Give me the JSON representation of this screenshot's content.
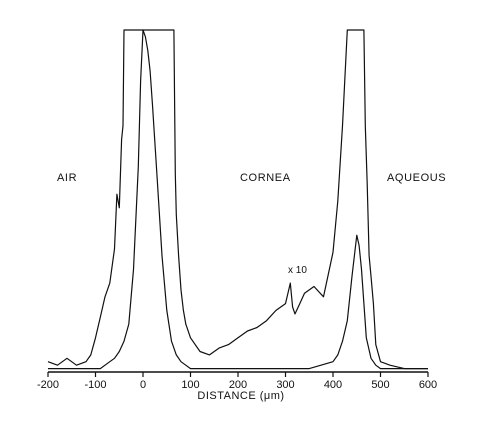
{
  "chart_data": {
    "type": "line",
    "title": "",
    "xlabel": "DISTANCE (μm)",
    "ylabel": "",
    "xlim": [
      -200,
      600
    ],
    "ylim": [
      0,
      100
    ],
    "x_ticks": [
      "-200",
      "-100",
      "0",
      "100",
      "200",
      "300",
      "400",
      "500",
      "600"
    ],
    "grid": false,
    "legend": "none",
    "region_labels": [
      "AIR",
      "CORNEA",
      "AQUEOUS"
    ],
    "annotation": "x 10",
    "colors": {
      "line": "#111111",
      "background": "#ffffff"
    },
    "series": [
      {
        "x": [
          -200,
          -170,
          -150,
          -140,
          -130,
          -120,
          -110,
          -100,
          -90,
          -80,
          -70,
          -60,
          -50,
          -40,
          -30,
          -20,
          -10,
          -5,
          0,
          5,
          10,
          15,
          20,
          30,
          40,
          50,
          60,
          70,
          80,
          90,
          100,
          150,
          200,
          250,
          300,
          350,
          400,
          410,
          420,
          430,
          440,
          450,
          455,
          460,
          465,
          470,
          480,
          490,
          500,
          550,
          600
        ],
        "y": [
          1,
          1,
          1,
          1,
          1,
          1,
          1,
          1,
          1,
          2,
          3,
          4,
          6,
          9,
          14,
          30,
          60,
          85,
          100,
          98,
          94,
          88,
          78,
          56,
          34,
          18,
          9,
          5,
          3,
          2,
          1,
          1,
          1,
          1,
          1,
          1,
          3,
          5,
          9,
          15,
          28,
          40,
          37,
          30,
          20,
          10,
          4,
          2,
          1,
          1,
          1
        ]
      },
      {
        "x": [
          -200,
          -180,
          -160,
          -140,
          -120,
          -110,
          -100,
          -90,
          -80,
          -70,
          -60,
          -55,
          -50,
          -45,
          -42,
          -40,
          -35,
          -30,
          -25,
          0,
          60,
          65,
          68,
          70,
          75,
          80,
          85,
          90,
          100,
          120,
          140,
          160,
          180,
          200,
          220,
          240,
          260,
          280,
          300,
          310,
          315,
          320,
          330,
          340,
          360,
          380,
          400,
          410,
          420,
          430,
          440,
          445,
          465,
          468,
          472,
          476,
          480,
          485,
          490,
          500,
          520,
          550,
          600
        ],
        "y": [
          3,
          2,
          4,
          2,
          3,
          5,
          10,
          16,
          22,
          26,
          36,
          52,
          48,
          68,
          72,
          100,
          100,
          100,
          100,
          100,
          100,
          100,
          58,
          46,
          34,
          24,
          18,
          14,
          10,
          6,
          5,
          7,
          8,
          10,
          12,
          13,
          15,
          18,
          20,
          26,
          19,
          17,
          20,
          23,
          25,
          22,
          35,
          50,
          72,
          100,
          100,
          100,
          100,
          72,
          55,
          34,
          28,
          20,
          8,
          3,
          2,
          1,
          1
        ]
      }
    ]
  }
}
